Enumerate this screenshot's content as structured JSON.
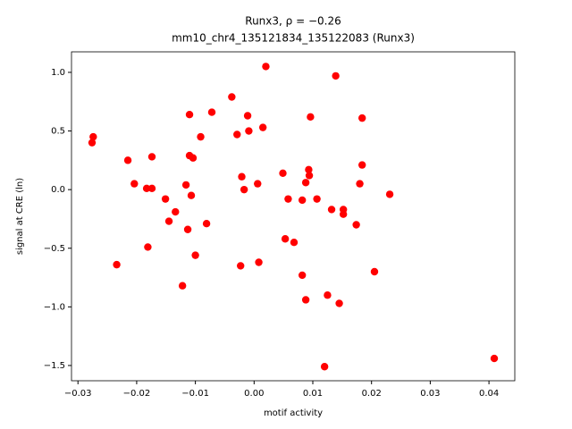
{
  "chart_data": {
    "type": "scatter",
    "title": "Runx3, ρ = −0.26",
    "subtitle": "mm10_chr4_135121834_135122083 (Runx3)",
    "x_label": "motif activity",
    "y_label": "signal at CRE (ln)",
    "color": "#ff0000",
    "xlim": [
      -0.0311,
      0.0444
    ],
    "ylim": [
      -1.63,
      1.175
    ],
    "xticks": [
      {
        "value": -0.03,
        "label": "−0.03"
      },
      {
        "value": -0.02,
        "label": "−0.02"
      },
      {
        "value": -0.01,
        "label": "−0.01"
      },
      {
        "value": 0,
        "label": "0.00"
      },
      {
        "value": 0.01,
        "label": "0.01"
      },
      {
        "value": 0.02,
        "label": "0.02"
      },
      {
        "value": 0.03,
        "label": "0.03"
      },
      {
        "value": 0.04,
        "label": "0.04"
      }
    ],
    "yticks": [
      {
        "value": -1.5,
        "label": "−1.5"
      },
      {
        "value": -1,
        "label": "−1.0"
      },
      {
        "value": -0.5,
        "label": "−0.5"
      },
      {
        "value": 0,
        "label": "0.0"
      },
      {
        "value": 0.5,
        "label": "0.5"
      },
      {
        "value": 1,
        "label": "1.0"
      }
    ],
    "x": [
      -0.0274,
      -0.0276,
      -0.0215,
      -0.0204,
      -0.0234,
      -0.0183,
      -0.0174,
      -0.0174,
      -0.0181,
      -0.0151,
      -0.0145,
      -0.0134,
      -0.0122,
      -0.0116,
      -0.0113,
      -0.011,
      -0.011,
      -0.0104,
      -0.0107,
      -0.01,
      -0.0091,
      -0.0081,
      -0.0072,
      -0.0038,
      -0.0029,
      -0.0023,
      -0.0021,
      -0.0017,
      -0.0011,
      -0.0009,
      0.0006,
      0.0008,
      0.0015,
      0.002,
      0.0049,
      0.0053,
      0.0058,
      0.0068,
      0.0082,
      0.0082,
      0.0088,
      0.0088,
      0.0093,
      0.0094,
      0.0096,
      0.0107,
      0.012,
      0.0125,
      0.0132,
      0.0139,
      0.0145,
      0.0152,
      0.0152,
      0.0174,
      0.018,
      0.0184,
      0.0184,
      0.0205,
      0.0231,
      0.0409
    ],
    "values": [
      0.45,
      0.4,
      0.25,
      0.05,
      -0.64,
      0.01,
      0.01,
      0.28,
      -0.49,
      -0.08,
      -0.27,
      -0.19,
      -0.82,
      0.04,
      -0.34,
      0.64,
      0.29,
      0.27,
      -0.05,
      -0.56,
      0.45,
      -0.29,
      0.66,
      0.79,
      0.47,
      -0.65,
      0.11,
      0,
      0.63,
      0.5,
      0.05,
      -0.62,
      0.53,
      1.05,
      0.14,
      -0.42,
      -0.08,
      -0.45,
      -0.09,
      -0.73,
      0.06,
      -0.94,
      0.17,
      0.12,
      0.62,
      -0.08,
      -1.51,
      -0.9,
      -0.17,
      0.97,
      -0.97,
      -0.17,
      -0.21,
      -0.3,
      0.05,
      0.61,
      0.21,
      -0.7,
      -0.04,
      -1.44
    ]
  }
}
